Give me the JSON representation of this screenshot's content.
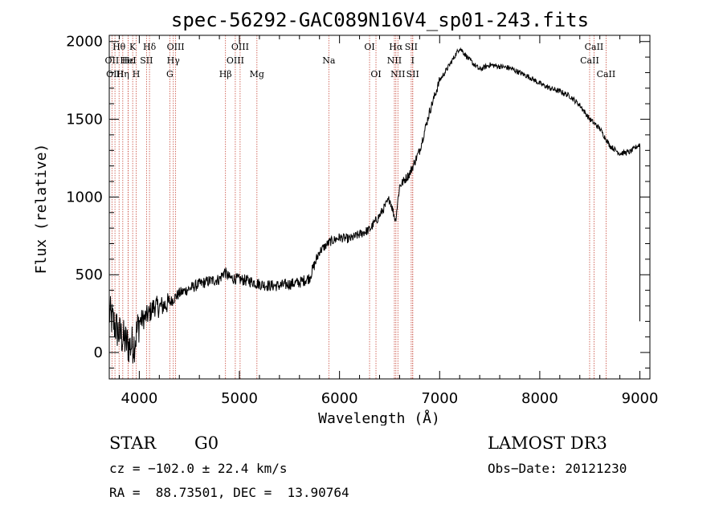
{
  "chart_data": {
    "type": "line",
    "title": "spec-56292-GAC089N16V4_sp01-243.fits",
    "xlabel": "Wavelength (Å)",
    "ylabel": "Flux (relative)",
    "xlim": [
      3700,
      9100
    ],
    "ylim": [
      -170,
      2040
    ],
    "xticks": [
      4000,
      5000,
      6000,
      7000,
      8000,
      9000
    ],
    "yticks": [
      0,
      500,
      1000,
      1500,
      2000
    ],
    "xtick_labels": [
      "4000",
      "5000",
      "6000",
      "7000",
      "8000",
      "9000"
    ],
    "ytick_labels": [
      "0",
      "500",
      "1000",
      "1500",
      "2000"
    ],
    "series": [
      {
        "name": "spectrum",
        "x": [
          3700,
          3750,
          3800,
          3850,
          3900,
          3950,
          4000,
          4050,
          4100,
          4150,
          4200,
          4300,
          4400,
          4500,
          4600,
          4700,
          4800,
          4850,
          4900,
          5000,
          5100,
          5200,
          5300,
          5400,
          5500,
          5600,
          5700,
          5800,
          5900,
          6000,
          6100,
          6200,
          6300,
          6400,
          6500,
          6560,
          6600,
          6700,
          6800,
          6900,
          7000,
          7100,
          7200,
          7300,
          7400,
          7500,
          7600,
          7700,
          7800,
          7900,
          8000,
          8100,
          8200,
          8300,
          8400,
          8500,
          8600,
          8700,
          8800,
          8900,
          9000
        ],
        "y": [
          250,
          180,
          120,
          80,
          40,
          60,
          200,
          220,
          250,
          300,
          290,
          320,
          380,
          410,
          440,
          460,
          470,
          520,
          480,
          470,
          460,
          440,
          430,
          430,
          440,
          450,
          480,
          650,
          710,
          740,
          730,
          760,
          790,
          880,
          990,
          850,
          1070,
          1150,
          1300,
          1550,
          1750,
          1850,
          1960,
          1880,
          1820,
          1850,
          1840,
          1830,
          1800,
          1770,
          1730,
          1700,
          1680,
          1650,
          1590,
          1500,
          1440,
          1330,
          1280,
          1290,
          1340
        ]
      }
    ],
    "emission_lines": [
      {
        "label": "Hθ",
        "x": 3798,
        "row": 1
      },
      {
        "label": "OII",
        "x": 3727,
        "row": 2
      },
      {
        "label": "OIII",
        "x": 3757,
        "row": 3
      },
      {
        "label": "K",
        "x": 3934,
        "row": 1
      },
      {
        "label": "Hε",
        "x": 3889,
        "row": 2
      },
      {
        "label": "HeI",
        "x": 3889,
        "row": 2
      },
      {
        "label": "Hη",
        "x": 3835,
        "row": 3
      },
      {
        "label": "SII",
        "x": 4072,
        "row": 2
      },
      {
        "label": "H",
        "x": 3969,
        "row": 3
      },
      {
        "label": "Hδ",
        "x": 4102,
        "row": 1
      },
      {
        "label": "OIII",
        "x": 4363,
        "row": 1
      },
      {
        "label": "Hγ",
        "x": 4340,
        "row": 2
      },
      {
        "label": "G",
        "x": 4305,
        "row": 3
      },
      {
        "label": "OIII",
        "x": 5007,
        "row": 1
      },
      {
        "label": "OIII",
        "x": 4959,
        "row": 2
      },
      {
        "label": "Hβ",
        "x": 4861,
        "row": 3
      },
      {
        "label": "Mg",
        "x": 5175,
        "row": 3
      },
      {
        "label": "Na",
        "x": 5893,
        "row": 2
      },
      {
        "label": "OI",
        "x": 6300,
        "row": 1
      },
      {
        "label": "OI",
        "x": 6364,
        "row": 3
      },
      {
        "label": "Hα",
        "x": 6563,
        "row": 1
      },
      {
        "label": "SII",
        "x": 6716,
        "row": 1
      },
      {
        "label": "NII",
        "x": 6548,
        "row": 2
      },
      {
        "label": "I",
        "x": 6731,
        "row": 2
      },
      {
        "label": "NII",
        "x": 6583,
        "row": 3
      },
      {
        "label": "SII",
        "x": 6731,
        "row": 3
      },
      {
        "label": "CaII",
        "x": 8542,
        "row": 1
      },
      {
        "label": "CaII",
        "x": 8498,
        "row": 2
      },
      {
        "label": "CaII",
        "x": 8662,
        "row": 3
      }
    ]
  },
  "info": {
    "class": "STAR",
    "subclass": "G0",
    "survey": "LAMOST DR3",
    "cz": "cz = −102.0 ± 22.4 km/s",
    "obs_date": "Obs−Date: 20121230",
    "radec": "RA =  88.73501, DEC =  13.90764"
  }
}
